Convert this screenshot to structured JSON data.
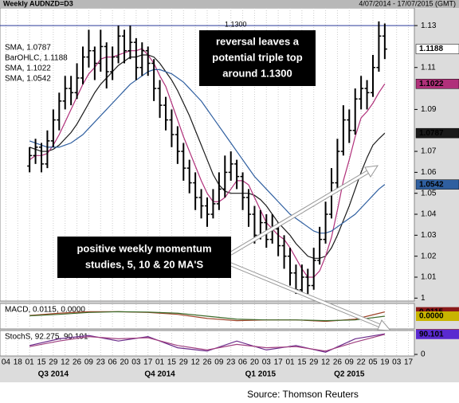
{
  "chart_data": {
    "type": "ohlc",
    "title": "Weekly AUDNZD=D3",
    "subtitle": "4/07/2014 - 17/07/2015 (GMT)",
    "bar_name": "BarOHLC, 1.1188",
    "bar_color": "#000000",
    "open": [
      1.063,
      1.068,
      1.072,
      1.064,
      1.075,
      1.085,
      1.094,
      1.1,
      1.098,
      1.105,
      1.115,
      1.118,
      1.112,
      1.12,
      1.108,
      1.115,
      1.125,
      1.118,
      1.122,
      1.11,
      1.118,
      1.112,
      1.1,
      1.092,
      1.085,
      1.078,
      1.07,
      1.062,
      1.055,
      1.048,
      1.044,
      1.04,
      1.045,
      1.052,
      1.06,
      1.064,
      1.058,
      1.048,
      1.04,
      1.03,
      1.036,
      1.028,
      1.033,
      1.025,
      1.02,
      1.012,
      1.004,
      1.01,
      1.006,
      1.018,
      1.028,
      1.04,
      1.055,
      1.07,
      1.085,
      1.08,
      1.095,
      1.1,
      1.098,
      1.11,
      1.125
    ],
    "high": [
      1.072,
      1.076,
      1.074,
      1.08,
      1.09,
      1.098,
      1.106,
      1.106,
      1.112,
      1.12,
      1.128,
      1.12,
      1.128,
      1.122,
      1.12,
      1.13,
      1.128,
      1.13,
      1.124,
      1.122,
      1.12,
      1.114,
      1.104,
      1.096,
      1.09,
      1.082,
      1.074,
      1.066,
      1.06,
      1.052,
      1.048,
      1.052,
      1.06,
      1.068,
      1.07,
      1.066,
      1.06,
      1.052,
      1.044,
      1.042,
      1.04,
      1.04,
      1.036,
      1.03,
      1.024,
      1.016,
      1.016,
      1.014,
      1.024,
      1.034,
      1.046,
      1.062,
      1.076,
      1.092,
      1.09,
      1.1,
      1.106,
      1.104,
      1.116,
      1.132,
      1.131
    ],
    "low": [
      1.06,
      1.064,
      1.06,
      1.062,
      1.072,
      1.08,
      1.09,
      1.092,
      1.095,
      1.102,
      1.11,
      1.104,
      1.108,
      1.1,
      1.104,
      1.112,
      1.112,
      1.114,
      1.104,
      1.106,
      1.106,
      1.094,
      1.086,
      1.08,
      1.072,
      1.064,
      1.056,
      1.05,
      1.042,
      1.038,
      1.034,
      1.038,
      1.042,
      1.048,
      1.056,
      1.052,
      1.042,
      1.034,
      1.026,
      1.028,
      1.024,
      1.026,
      1.02,
      1.014,
      1.006,
      1.002,
      1.002,
      1.002,
      1.004,
      1.016,
      1.026,
      1.038,
      1.052,
      1.068,
      1.074,
      1.078,
      1.09,
      1.09,
      1.096,
      1.108,
      1.114
    ],
    "close": [
      1.068,
      1.072,
      1.064,
      1.075,
      1.085,
      1.094,
      1.1,
      1.098,
      1.105,
      1.115,
      1.118,
      1.112,
      1.12,
      1.108,
      1.115,
      1.125,
      1.118,
      1.122,
      1.11,
      1.118,
      1.112,
      1.1,
      1.092,
      1.085,
      1.078,
      1.07,
      1.062,
      1.055,
      1.048,
      1.044,
      1.04,
      1.045,
      1.052,
      1.06,
      1.064,
      1.058,
      1.048,
      1.04,
      1.03,
      1.036,
      1.028,
      1.033,
      1.025,
      1.02,
      1.012,
      1.004,
      1.01,
      1.006,
      1.018,
      1.028,
      1.04,
      1.055,
      1.07,
      1.085,
      1.08,
      1.095,
      1.1,
      1.098,
      1.11,
      1.125,
      1.1188
    ],
    "series": [
      {
        "name": "SMA, 1.0787",
        "color": "#1a1a1a",
        "values": [
          1.072,
          1.071,
          1.07,
          1.07,
          1.071,
          1.073,
          1.076,
          1.079,
          1.083,
          1.088,
          1.093,
          1.098,
          1.102,
          1.105,
          1.108,
          1.111,
          1.113,
          1.115,
          1.115,
          1.116,
          1.116,
          1.115,
          1.112,
          1.108,
          1.104,
          1.099,
          1.093,
          1.087,
          1.08,
          1.073,
          1.066,
          1.059,
          1.054,
          1.051,
          1.05,
          1.05,
          1.05,
          1.05,
          1.049,
          1.047,
          1.044,
          1.04,
          1.036,
          1.033,
          1.03,
          1.026,
          1.023,
          1.02,
          1.019,
          1.019,
          1.02,
          1.024,
          1.03,
          1.037,
          1.044,
          1.052,
          1.06,
          1.067,
          1.073,
          1.076,
          1.0787
        ]
      },
      {
        "name": "SMA, 1.1022",
        "color": "#b0307a",
        "values": [
          1.066,
          1.068,
          1.068,
          1.069,
          1.073,
          1.078,
          1.084,
          1.09,
          1.096,
          1.102,
          1.107,
          1.11,
          1.114,
          1.115,
          1.115,
          1.116,
          1.117,
          1.118,
          1.118,
          1.119,
          1.116,
          1.112,
          1.106,
          1.101,
          1.093,
          1.085,
          1.077,
          1.07,
          1.063,
          1.056,
          1.05,
          1.046,
          1.046,
          1.048,
          1.052,
          1.056,
          1.056,
          1.054,
          1.048,
          1.042,
          1.036,
          1.033,
          1.03,
          1.028,
          1.024,
          1.019,
          1.014,
          1.01,
          1.01,
          1.013,
          1.02,
          1.029,
          1.042,
          1.056,
          1.066,
          1.077,
          1.086,
          1.089,
          1.093,
          1.098,
          1.1022
        ]
      },
      {
        "name": "SMA, 1.0542",
        "color": "#2f5fa0",
        "values": [
          1.075,
          1.074,
          1.073,
          1.072,
          1.072,
          1.072,
          1.073,
          1.074,
          1.076,
          1.078,
          1.081,
          1.084,
          1.087,
          1.09,
          1.093,
          1.096,
          1.099,
          1.102,
          1.104,
          1.106,
          1.108,
          1.109,
          1.109,
          1.108,
          1.107,
          1.105,
          1.103,
          1.1,
          1.097,
          1.094,
          1.09,
          1.086,
          1.082,
          1.078,
          1.074,
          1.07,
          1.066,
          1.062,
          1.058,
          1.055,
          1.052,
          1.049,
          1.046,
          1.043,
          1.04,
          1.038,
          1.036,
          1.034,
          1.032,
          1.031,
          1.031,
          1.032,
          1.034,
          1.036,
          1.038,
          1.04,
          1.043,
          1.046,
          1.049,
          1.052,
          1.0542
        ]
      }
    ],
    "xlim": [
      -5,
      65
    ],
    "ylim": [
      0.9986,
      1.1384
    ],
    "yticks": [
      1,
      1.01,
      1.02,
      1.03,
      1.04,
      1.05,
      1.06,
      1.07,
      1.09,
      1.11,
      1.13
    ],
    "xticks": [
      {
        "value": -4,
        "label": "04"
      },
      {
        "value": -2,
        "label": "18"
      },
      {
        "value": 0,
        "label": "01"
      },
      {
        "value": 2,
        "label": "15"
      },
      {
        "value": 4,
        "label": "29"
      },
      {
        "value": 6,
        "label": "12"
      },
      {
        "value": 8,
        "label": "26"
      },
      {
        "value": 10,
        "label": "09"
      },
      {
        "value": 12,
        "label": "23"
      },
      {
        "value": 14,
        "label": "06"
      },
      {
        "value": 16,
        "label": "20"
      },
      {
        "value": 18,
        "label": "03"
      },
      {
        "value": 20,
        "label": "17"
      },
      {
        "value": 22,
        "label": "01"
      },
      {
        "value": 24,
        "label": "15"
      },
      {
        "value": 26,
        "label": "29"
      },
      {
        "value": 28,
        "label": "12"
      },
      {
        "value": 30,
        "label": "26"
      },
      {
        "value": 32,
        "label": "09"
      },
      {
        "value": 34,
        "label": "23"
      },
      {
        "value": 36,
        "label": "06"
      },
      {
        "value": 38,
        "label": "20"
      },
      {
        "value": 40,
        "label": "03"
      },
      {
        "value": 42,
        "label": "17"
      },
      {
        "value": 44,
        "label": "01"
      },
      {
        "value": 46,
        "label": "15"
      },
      {
        "value": 48,
        "label": "29"
      },
      {
        "value": 50,
        "label": "12"
      },
      {
        "value": 52,
        "label": "26"
      },
      {
        "value": 54,
        "label": "09"
      },
      {
        "value": 56,
        "label": "22"
      },
      {
        "value": 58,
        "label": "05"
      },
      {
        "value": 60,
        "label": "19"
      },
      {
        "value": 62,
        "label": "03"
      },
      {
        "value": 64,
        "label": "17"
      }
    ],
    "quarters": [
      {
        "value": 4,
        "label": "Q3 2014"
      },
      {
        "value": 22,
        "label": "Q4 2014"
      },
      {
        "value": 39,
        "label": "Q1 2015"
      },
      {
        "value": 54,
        "label": "Q2 2015"
      }
    ],
    "hline": {
      "value": 1.13,
      "label": "1.1300",
      "color": "#2a3a9a"
    },
    "annotations": [
      "reversal leaves a",
      "potential triple top",
      "around 1.1300",
      "positive weekly momentum",
      "studies, 5, 10 & 20 MA'S"
    ],
    "macd": {
      "label": "MACD, 0.0115, 0.0000",
      "x": [
        0,
        5,
        10,
        15,
        20,
        25,
        30,
        35,
        40,
        45,
        50,
        55,
        60
      ],
      "ylim": [
        -0.03,
        0.03
      ],
      "series": [
        {
          "color": "#a0442a",
          "values": [
            0.002,
            0.008,
            0.012,
            0.012,
            0.01,
            0.005,
            -0.006,
            -0.012,
            -0.01,
            -0.01,
            -0.014,
            -0.008,
            0.0115
          ],
          "last_label": "0.0115"
        },
        {
          "color": "#3d6b2a",
          "values": [
            0.001,
            0.005,
            0.01,
            0.012,
            0.011,
            0.008,
            0.0,
            -0.008,
            -0.01,
            -0.01,
            -0.012,
            -0.01,
            0
          ],
          "last_label": "0.0000"
        }
      ]
    },
    "stoch": {
      "label": "StochS, 92.275, 90.101",
      "x": [
        0,
        5,
        10,
        15,
        20,
        25,
        30,
        35,
        40,
        45,
        50,
        55,
        60
      ],
      "ylim": [
        0,
        100
      ],
      "yticks": [
        0
      ],
      "series": [
        {
          "color": "#6a2a8a",
          "values": [
            40,
            70,
            85,
            60,
            80,
            30,
            15,
            60,
            20,
            40,
            10,
            70,
            92.275
          ]
        },
        {
          "color": "#a04080",
          "values": [
            35,
            60,
            80,
            70,
            75,
            40,
            20,
            45,
            30,
            35,
            15,
            55,
            90.101
          ]
        }
      ]
    },
    "source": "Source: Thomson Reuters"
  }
}
